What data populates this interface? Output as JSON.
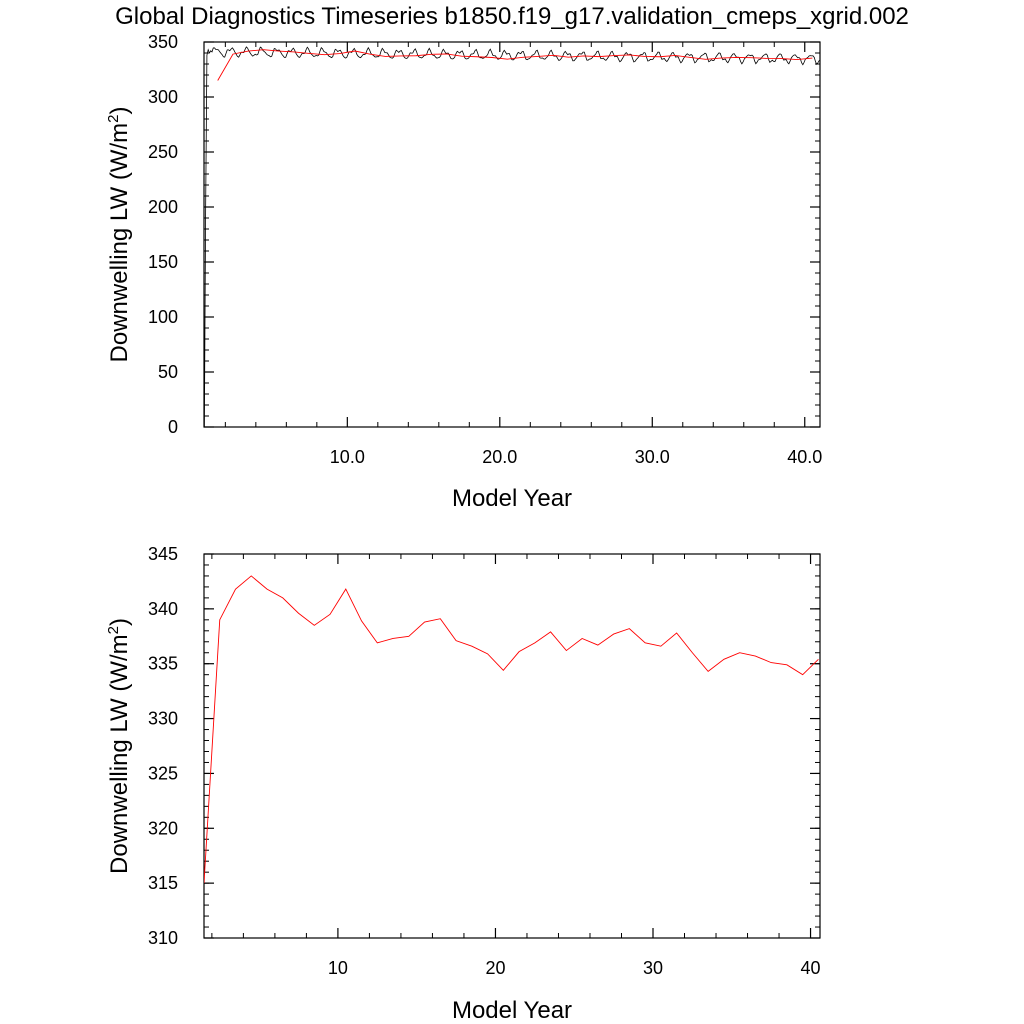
{
  "title": "Global Diagnostics Timeseries b1850.f19_g17.validation_cmeps_xgrid.002",
  "colors": {
    "monthly": "#000000",
    "annual": "#ff0000"
  },
  "chart_data": [
    {
      "type": "line",
      "xlabel": "Model Year",
      "ylabel": {
        "main": "Downwelling LW (W/m",
        "sup": "2",
        "close": ")"
      },
      "xlim": [
        0.6,
        41.0
      ],
      "ylim": [
        0,
        350
      ],
      "x_ticks": [
        10,
        20,
        30,
        40
      ],
      "x_tick_labels": [
        "10.0",
        "20.0",
        "30.0",
        "40.0"
      ],
      "y_ticks": [
        0,
        50,
        100,
        150,
        200,
        250,
        300,
        350
      ],
      "y_tick_labels": [
        "0",
        "50",
        "100",
        "150",
        "200",
        "250",
        "300",
        "350"
      ],
      "grid": false,
      "series": [
        {
          "key": "monthly",
          "start_x": 0.625,
          "step": 0.0833333,
          "spinup": [
            0,
            200,
            338,
            343,
            340,
            342
          ],
          "base": 341,
          "trend": -0.16,
          "amplitude": 3.5
        },
        {
          "key": "annual",
          "x": [
            1.5,
            2.5,
            3.5,
            4.5,
            5.5,
            6.5,
            7.5,
            8.5,
            9.5,
            10.5,
            11.5,
            12.5,
            13.5,
            14.5,
            15.5,
            16.5,
            17.5,
            18.5,
            19.5,
            20.5,
            21.5,
            22.5,
            23.5,
            24.5,
            25.5,
            26.5,
            27.5,
            28.5,
            29.5,
            30.5,
            31.5,
            32.5,
            33.5,
            34.5,
            35.5,
            36.5,
            37.5,
            38.5,
            39.5,
            40.5
          ],
          "values": [
            315,
            339,
            341.8,
            343,
            341.8,
            341,
            339.6,
            338.5,
            339.5,
            341.8,
            338.9,
            336.9,
            337.3,
            337.5,
            338.8,
            339.1,
            337.1,
            336.6,
            335.9,
            334.4,
            336.1,
            336.9,
            337.9,
            336.2,
            337.3,
            336.7,
            337.7,
            338.2,
            336.9,
            336.6,
            337.8,
            336.0,
            334.3,
            335.4,
            336.0,
            335.7,
            335.1,
            334.9,
            334.0,
            335.4
          ]
        }
      ]
    },
    {
      "type": "line",
      "xlabel": "Model Year",
      "ylabel": {
        "main": "Downwelling LW (W/m",
        "sup": "2",
        "close": ")"
      },
      "xlim": [
        1.5,
        40.6
      ],
      "ylim": [
        310,
        345
      ],
      "x_ticks": [
        10,
        20,
        30,
        40
      ],
      "x_tick_labels": [
        "10",
        "20",
        "30",
        "40"
      ],
      "y_ticks": [
        310,
        315,
        320,
        325,
        330,
        335,
        340,
        345
      ],
      "y_tick_labels": [
        "310",
        "315",
        "320",
        "325",
        "330",
        "335",
        "340",
        "345"
      ],
      "grid": false,
      "series": [
        {
          "key": "annual",
          "x": [
            1.5,
            2.5,
            3.5,
            4.5,
            5.5,
            6.5,
            7.5,
            8.5,
            9.5,
            10.5,
            11.5,
            12.5,
            13.5,
            14.5,
            15.5,
            16.5,
            17.5,
            18.5,
            19.5,
            20.5,
            21.5,
            22.5,
            23.5,
            24.5,
            25.5,
            26.5,
            27.5,
            28.5,
            29.5,
            30.5,
            31.5,
            32.5,
            33.5,
            34.5,
            35.5,
            36.5,
            37.5,
            38.5,
            39.5,
            40.5
          ],
          "values": [
            315,
            339,
            341.8,
            343,
            341.8,
            341,
            339.6,
            338.5,
            339.5,
            341.8,
            338.9,
            336.9,
            337.3,
            337.5,
            338.8,
            339.1,
            337.1,
            336.6,
            335.9,
            334.4,
            336.1,
            336.9,
            337.9,
            336.2,
            337.3,
            336.7,
            337.7,
            338.2,
            336.9,
            336.6,
            337.8,
            336.0,
            334.3,
            335.4,
            336.0,
            335.7,
            335.1,
            334.9,
            334.0,
            335.4
          ]
        }
      ]
    }
  ]
}
